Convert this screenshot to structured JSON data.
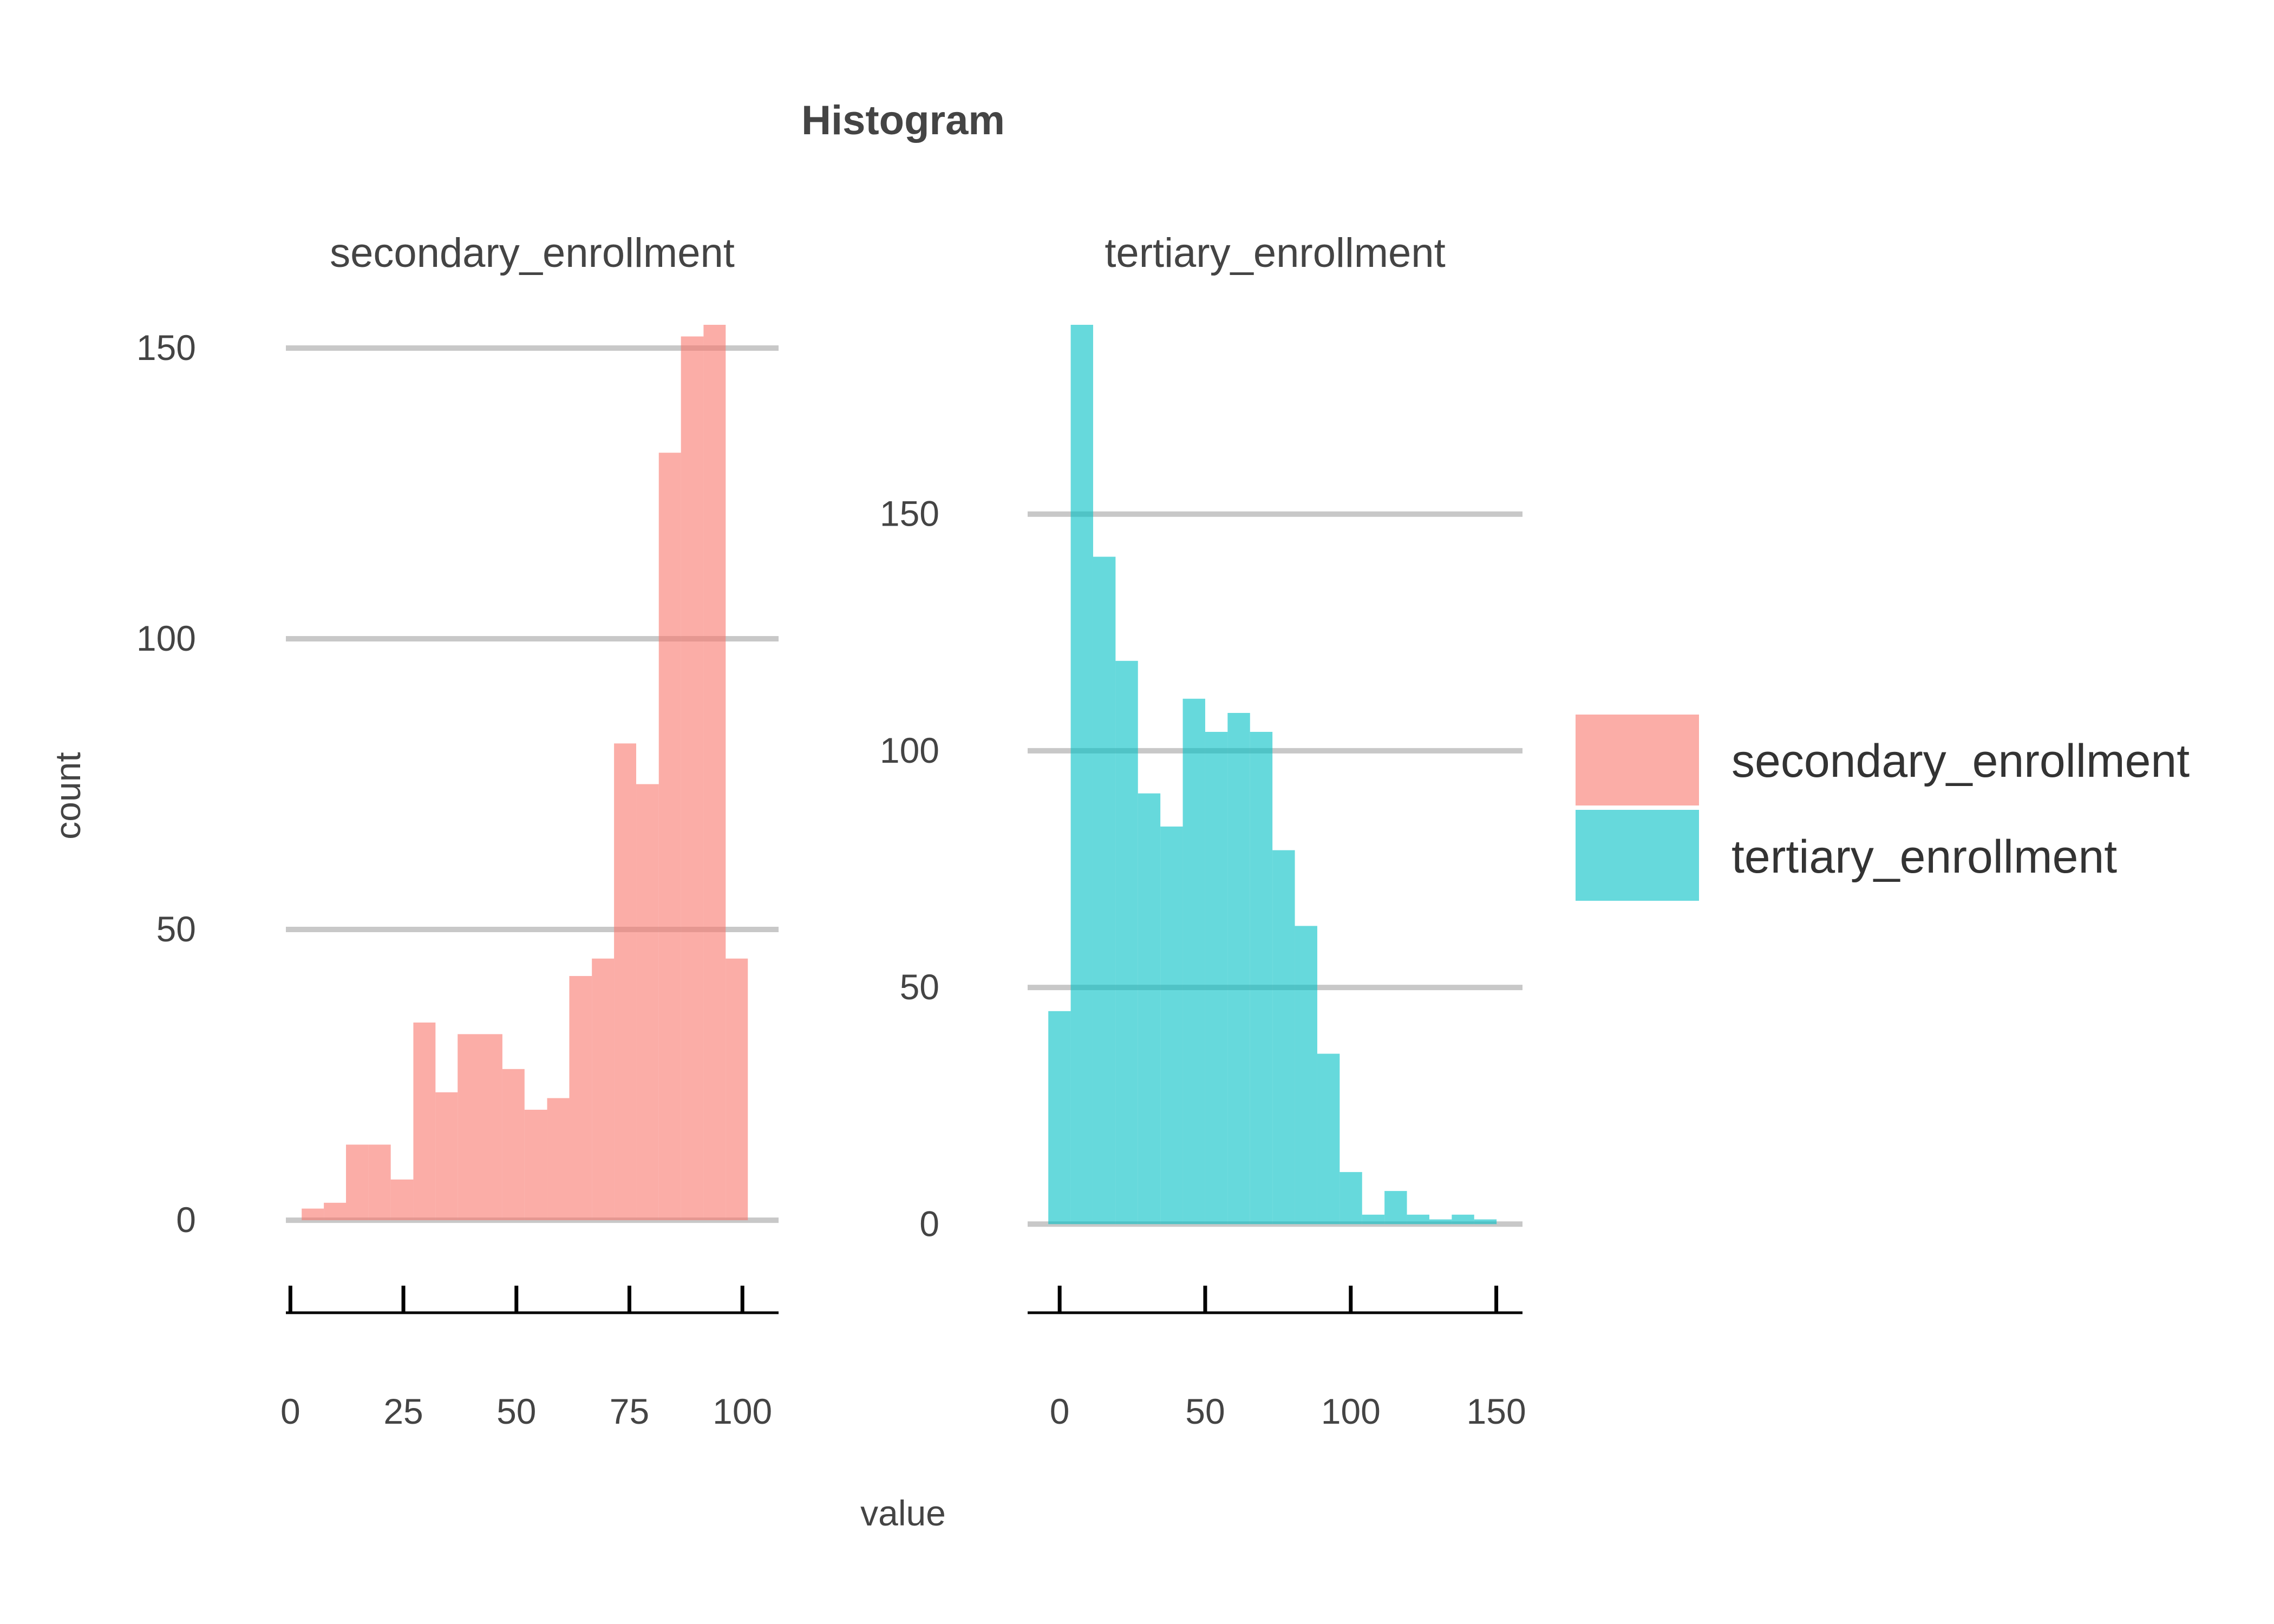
{
  "chart_data": {
    "type": "bar",
    "title": "Histogram",
    "xlabel": "value",
    "ylabel": "count",
    "legend": {
      "position": "right",
      "entries": [
        {
          "label": "secondary_enrollment",
          "color": "#F8766D"
        },
        {
          "label": "tertiary_enrollment",
          "color": "#00BFC4"
        }
      ]
    },
    "grid": true,
    "panels": [
      {
        "name": "secondary_enrollment",
        "color": "#F8766D",
        "xlim": [
          -1,
          108
        ],
        "ylim": [
          -8,
          154
        ],
        "x_ticks": [
          "0",
          "25",
          "50",
          "75",
          "100"
        ],
        "y_ticks": [
          "0",
          "50",
          "100",
          "150"
        ],
        "bins": [
          {
            "x0": 2.5,
            "x1": 7.4,
            "count": 2
          },
          {
            "x0": 7.4,
            "x1": 12.3,
            "count": 3
          },
          {
            "x0": 12.3,
            "x1": 17.3,
            "count": 13
          },
          {
            "x0": 17.3,
            "x1": 22.2,
            "count": 13
          },
          {
            "x0": 22.2,
            "x1": 27.2,
            "count": 7
          },
          {
            "x0": 27.2,
            "x1": 32.1,
            "count": 34
          },
          {
            "x0": 32.1,
            "x1": 37.0,
            "count": 22
          },
          {
            "x0": 37.0,
            "x1": 42.0,
            "count": 32
          },
          {
            "x0": 42.0,
            "x1": 46.9,
            "count": 32
          },
          {
            "x0": 46.9,
            "x1": 51.8,
            "count": 26
          },
          {
            "x0": 51.8,
            "x1": 56.8,
            "count": 19
          },
          {
            "x0": 56.8,
            "x1": 61.7,
            "count": 21
          },
          {
            "x0": 61.7,
            "x1": 66.7,
            "count": 42
          },
          {
            "x0": 66.7,
            "x1": 71.6,
            "count": 45
          },
          {
            "x0": 71.6,
            "x1": 76.5,
            "count": 82
          },
          {
            "x0": 76.5,
            "x1": 81.5,
            "count": 75
          },
          {
            "x0": 81.5,
            "x1": 86.4,
            "count": 132
          },
          {
            "x0": 86.4,
            "x1": 91.4,
            "count": 152
          },
          {
            "x0": 91.4,
            "x1": 96.3,
            "count": 154
          },
          {
            "x0": 96.3,
            "x1": 101.2,
            "count": 45
          }
        ]
      },
      {
        "name": "tertiary_enrollment",
        "color": "#00BFC4",
        "xlim": [
          -11,
          159
        ],
        "ylim": [
          -9,
          190
        ],
        "x_ticks": [
          "0",
          "50",
          "100",
          "150"
        ],
        "y_ticks": [
          "0",
          "50",
          "100",
          "150"
        ],
        "bins": [
          {
            "x0": -3.9,
            "x1": 3.8,
            "count": 45
          },
          {
            "x0": 3.8,
            "x1": 11.5,
            "count": 190
          },
          {
            "x0": 11.5,
            "x1": 19.2,
            "count": 141
          },
          {
            "x0": 19.2,
            "x1": 26.9,
            "count": 119
          },
          {
            "x0": 26.9,
            "x1": 34.6,
            "count": 91
          },
          {
            "x0": 34.6,
            "x1": 42.3,
            "count": 84
          },
          {
            "x0": 42.3,
            "x1": 50.0,
            "count": 111
          },
          {
            "x0": 50.0,
            "x1": 57.7,
            "count": 104
          },
          {
            "x0": 57.7,
            "x1": 65.4,
            "count": 108
          },
          {
            "x0": 65.4,
            "x1": 73.1,
            "count": 104
          },
          {
            "x0": 73.1,
            "x1": 80.8,
            "count": 79
          },
          {
            "x0": 80.8,
            "x1": 88.5,
            "count": 63
          },
          {
            "x0": 88.5,
            "x1": 96.2,
            "count": 36
          },
          {
            "x0": 96.2,
            "x1": 103.9,
            "count": 11
          },
          {
            "x0": 103.9,
            "x1": 111.6,
            "count": 2
          },
          {
            "x0": 111.6,
            "x1": 119.3,
            "count": 7
          },
          {
            "x0": 119.3,
            "x1": 127.0,
            "count": 2
          },
          {
            "x0": 127.0,
            "x1": 134.7,
            "count": 1
          },
          {
            "x0": 134.7,
            "x1": 142.4,
            "count": 2
          },
          {
            "x0": 142.4,
            "x1": 150.1,
            "count": 1
          }
        ]
      }
    ]
  }
}
